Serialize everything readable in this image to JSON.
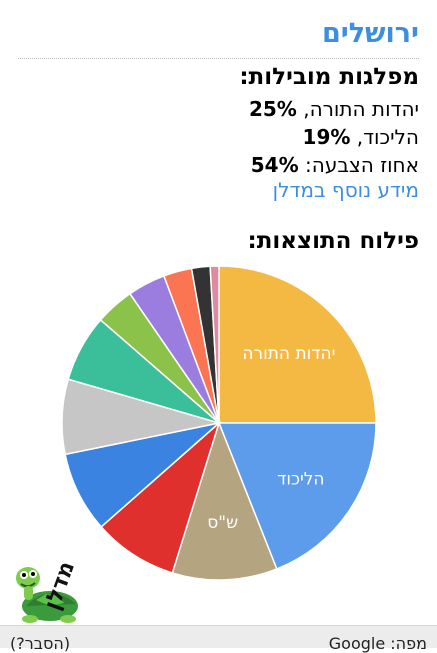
{
  "panel": {
    "city": "ירושלים",
    "leading_title": "מפלגות מובילות:",
    "stats": [
      {
        "name": "יהדות התורה",
        "sep": ", ",
        "value": "25%"
      },
      {
        "name": "הליכוד",
        "sep": ", ",
        "value": "19%"
      },
      {
        "name": "אחוז הצבעה",
        "sep": ": ",
        "value": "54%"
      }
    ],
    "more_link": "מידע נוסף במדלן",
    "distribution_title": "פילוח התוצאות:"
  },
  "chart_data": {
    "type": "pie",
    "title": "",
    "slices": [
      {
        "label": "יהדות התורה",
        "value": 25,
        "color": "#f4b942",
        "show_label": true
      },
      {
        "label": "הליכוד",
        "value": 19,
        "color": "#5c9ceb",
        "show_label": true
      },
      {
        "label": "ש\"ס",
        "value": 10.8,
        "color": "#b5a480",
        "show_label": true
      },
      {
        "label": "",
        "value": 8.7,
        "color": "#e0302e",
        "show_label": false
      },
      {
        "label": "",
        "value": 8.3,
        "color": "#3a83e0",
        "show_label": false
      },
      {
        "label": "",
        "value": 7.7,
        "color": "#c6c6c6",
        "show_label": false
      },
      {
        "label": "",
        "value": 6.9,
        "color": "#3bbf9a",
        "show_label": false
      },
      {
        "label": "",
        "value": 4.0,
        "color": "#8bc34a",
        "show_label": false
      },
      {
        "label": "",
        "value": 3.9,
        "color": "#9b7ddf",
        "show_label": false
      },
      {
        "label": "",
        "value": 2.9,
        "color": "#fb7553",
        "show_label": false
      },
      {
        "label": "",
        "value": 1.9,
        "color": "#333333",
        "show_label": false
      },
      {
        "label": "",
        "value": 0.9,
        "color": "#e08aa0",
        "show_label": false
      }
    ]
  },
  "logo": {
    "text": "מדלן",
    "icon": "turtle-mascot-icon"
  },
  "footer": {
    "map_credit": "מפה: Google",
    "explain_link": "(הסבר?)"
  }
}
